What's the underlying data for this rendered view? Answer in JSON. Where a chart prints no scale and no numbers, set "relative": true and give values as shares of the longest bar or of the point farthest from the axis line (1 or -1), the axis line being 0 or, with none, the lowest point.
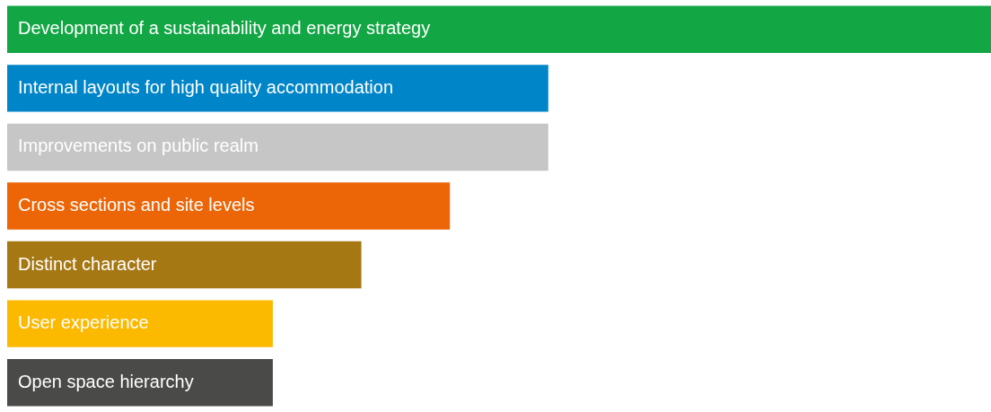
{
  "chart_data": {
    "type": "bar",
    "orientation": "horizontal",
    "relative": true,
    "categories": [
      "Development of a sustainability and energy strategy",
      "Internal layouts for high quality accommodation",
      "Improvements on public realm",
      "Cross sections and site levels",
      "Distinct character",
      "User experience",
      "Open space hierarchy"
    ],
    "values": [
      1,
      0.55,
      0.55,
      0.45,
      0.36,
      0.27,
      0.27
    ],
    "colors": [
      "#12a644",
      "#0085c8",
      "#c6c6c6",
      "#ec6608",
      "#a67814",
      "#fbb900",
      "#4a4a48"
    ],
    "legend": false
  }
}
